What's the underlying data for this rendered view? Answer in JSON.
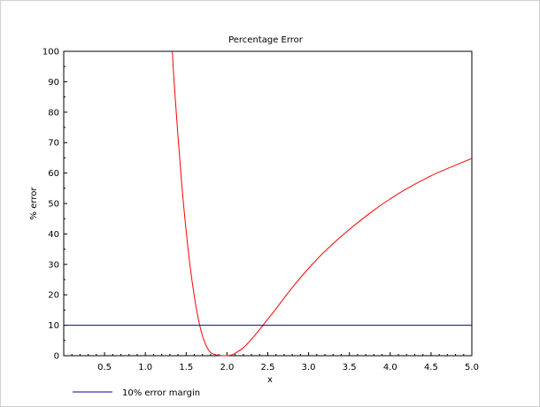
{
  "chart_data": {
    "type": "line",
    "title": "Percentage Error",
    "xlabel": "x",
    "ylabel": "% error",
    "xlim": [
      0,
      5
    ],
    "ylim": [
      0,
      100
    ],
    "x_ticks": [
      "0.5",
      "1.0",
      "1.5",
      "2.0",
      "2.5",
      "3.0",
      "3.5",
      "4.0",
      "4.5",
      "5.0"
    ],
    "x_tick_values": [
      0.5,
      1.0,
      1.5,
      2.0,
      2.5,
      3.0,
      3.5,
      4.0,
      4.5,
      5.0
    ],
    "y_ticks": [
      "0",
      "10",
      "20",
      "30",
      "40",
      "50",
      "60",
      "70",
      "80",
      "90",
      "100"
    ],
    "y_tick_values": [
      0,
      10,
      20,
      30,
      40,
      50,
      60,
      70,
      80,
      90,
      100
    ],
    "grid": false,
    "legend_position": "bottom-left",
    "series": [
      {
        "color": "#ff0000",
        "x": [
          1.33,
          1.35,
          1.4,
          1.45,
          1.5,
          1.55,
          1.6,
          1.65,
          1.7,
          1.75,
          1.8,
          1.85,
          1.9,
          1.95,
          2.0,
          2.05,
          2.1,
          2.2,
          2.3,
          2.4,
          2.5,
          2.6,
          2.8,
          3.0,
          3.2,
          3.5,
          3.8,
          4.0,
          4.2,
          4.5,
          4.8,
          5.0
        ],
        "y": [
          100,
          91,
          72,
          55,
          41,
          29,
          19.5,
          12,
          6.5,
          3,
          1,
          0.4,
          0.1,
          0,
          0,
          0.2,
          0.8,
          2.6,
          5.4,
          8.6,
          12,
          15.4,
          22.4,
          28.7,
          34.3,
          41.5,
          47.8,
          51.5,
          54.8,
          59.1,
          62.6,
          64.8
        ]
      },
      {
        "name": "10% error margin",
        "color": "#0000a0",
        "x": [
          0,
          5
        ],
        "y": [
          10,
          10
        ]
      }
    ]
  }
}
